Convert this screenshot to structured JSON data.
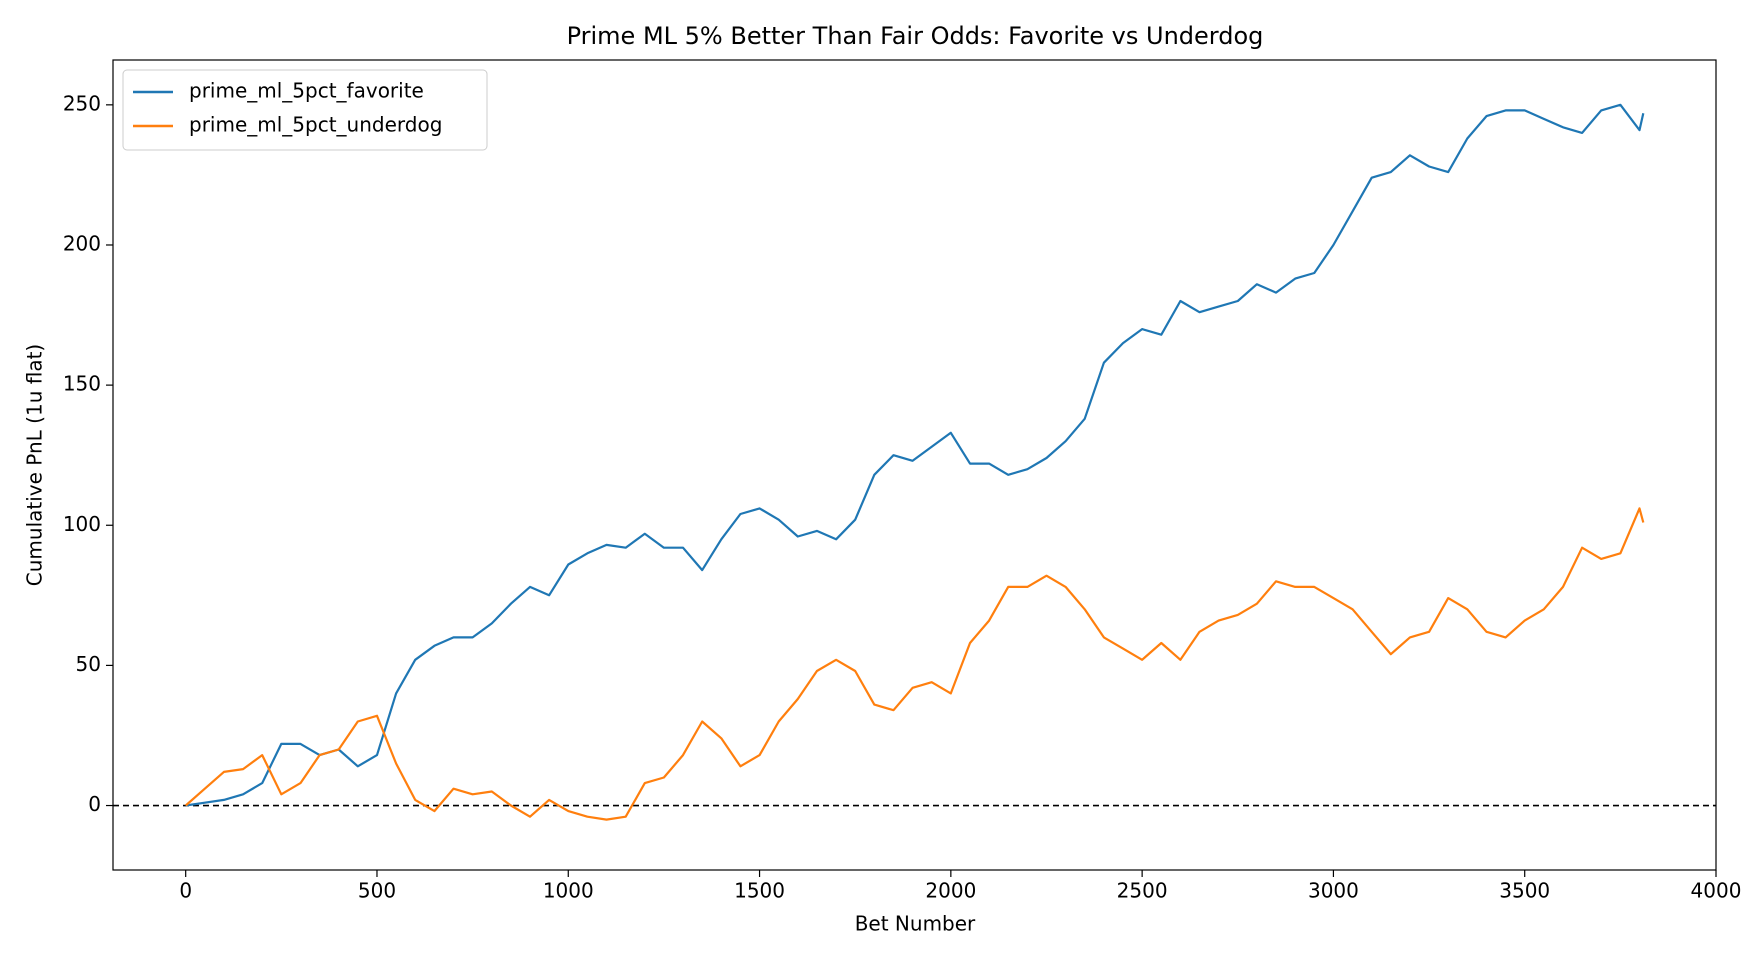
{
  "chart_data": {
    "type": "line",
    "title": "Prime ML 5% Better Than Fair Odds: Favorite vs Underdog",
    "xlabel": "Bet Number",
    "ylabel": "Cumulative PnL (1u flat)",
    "x": [
      0,
      50,
      100,
      150,
      200,
      250,
      300,
      350,
      400,
      450,
      500,
      550,
      600,
      650,
      700,
      750,
      800,
      850,
      900,
      950,
      1000,
      1050,
      1100,
      1150,
      1200,
      1250,
      1300,
      1350,
      1400,
      1450,
      1500,
      1550,
      1600,
      1650,
      1700,
      1750,
      1800,
      1850,
      1900,
      1950,
      2000,
      2050,
      2100,
      2150,
      2200,
      2250,
      2300,
      2350,
      2400,
      2450,
      2500,
      2550,
      2600,
      2650,
      2700,
      2750,
      2800,
      2850,
      2900,
      2950,
      3000,
      3050,
      3100,
      3150,
      3200,
      3250,
      3300,
      3350,
      3400,
      3450,
      3500,
      3550,
      3600,
      3650,
      3700,
      3750,
      3800,
      3810
    ],
    "series": [
      {
        "name": "prime_ml_5pct_favorite",
        "color": "#1f77b4",
        "values": [
          0,
          1,
          2,
          4,
          8,
          22,
          22,
          18,
          20,
          14,
          18,
          40,
          52,
          57,
          60,
          60,
          65,
          72,
          78,
          75,
          86,
          90,
          93,
          92,
          97,
          92,
          92,
          84,
          95,
          104,
          106,
          102,
          96,
          98,
          95,
          102,
          118,
          125,
          123,
          128,
          133,
          122,
          122,
          118,
          120,
          124,
          130,
          138,
          158,
          165,
          170,
          168,
          180,
          176,
          178,
          180,
          186,
          183,
          188,
          190,
          200,
          212,
          224,
          226,
          232,
          228,
          226,
          238,
          246,
          248,
          248,
          245,
          242,
          240,
          248,
          250,
          241,
          247
        ]
      },
      {
        "name": "prime_ml_5pct_underdog",
        "color": "#ff7f0e",
        "values": [
          0,
          6,
          12,
          13,
          18,
          4,
          8,
          18,
          20,
          30,
          32,
          15,
          2,
          -2,
          6,
          4,
          5,
          0,
          -4,
          2,
          -2,
          -4,
          -5,
          -4,
          8,
          10,
          18,
          30,
          24,
          14,
          18,
          30,
          38,
          48,
          52,
          48,
          36,
          34,
          42,
          44,
          40,
          58,
          66,
          78,
          78,
          82,
          78,
          70,
          60,
          56,
          52,
          58,
          52,
          62,
          66,
          68,
          72,
          80,
          78,
          78,
          74,
          70,
          62,
          54,
          60,
          62,
          74,
          70,
          62,
          60,
          66,
          70,
          78,
          92,
          88,
          90,
          106,
          101
        ]
      }
    ],
    "hline": 0,
    "xlim": [
      -190,
      4000
    ],
    "ylim": [
      -23,
      266
    ],
    "xticks": [
      0,
      500,
      1000,
      1500,
      2000,
      2500,
      3000,
      3500,
      4000
    ],
    "yticks": [
      0,
      50,
      100,
      150,
      200,
      250
    ],
    "legend": "upper left"
  }
}
